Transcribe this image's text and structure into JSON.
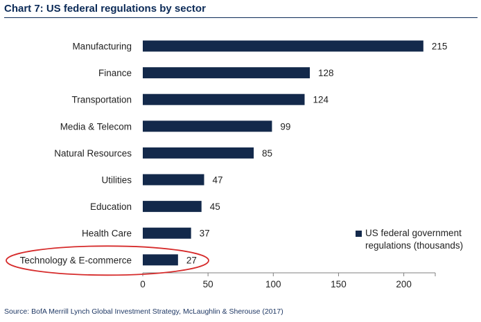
{
  "title": "Chart 7: US federal regulations by sector",
  "source": "Source:  BofA Merrill Lynch Global Investment Strategy, McLaughlin & Sherouse (2017)",
  "colors": {
    "bar": "#13294b",
    "highlight": "#d62b2b",
    "title": "#0b2a57"
  },
  "chart_data": {
    "type": "bar",
    "orientation": "horizontal",
    "categories": [
      "Manufacturing",
      "Finance",
      "Transportation",
      "Media & Telecom",
      "Natural Resources",
      "Utilities",
      "Education",
      "Health Care",
      "Technology & E-commerce"
    ],
    "series": [
      {
        "name": "US federal government regulations (thousands)",
        "values": [
          215,
          128,
          124,
          99,
          85,
          47,
          45,
          37,
          27
        ]
      }
    ],
    "xlim": [
      0,
      225
    ],
    "xticks": [
      0,
      50,
      100,
      150,
      200
    ],
    "xlabel": "",
    "ylabel": "",
    "data_labels": true,
    "legend_position": "bottom-right",
    "grid": false,
    "annotation": {
      "type": "ellipse",
      "target_category": "Technology & E-commerce",
      "color": "#d62b2b"
    }
  }
}
